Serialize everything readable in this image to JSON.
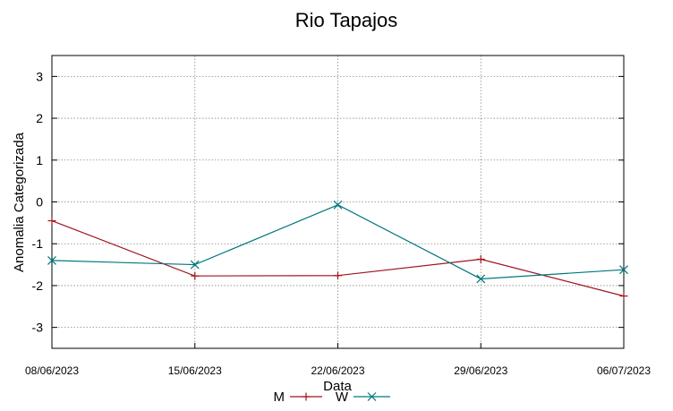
{
  "chart_data": {
    "type": "line",
    "title": "Rio Tapajos",
    "xlabel": "Data",
    "ylabel": "Anomalia Categorizada",
    "x": [
      "08/06/2023",
      "15/06/2023",
      "22/06/2023",
      "29/06/2023",
      "06/07/2023"
    ],
    "ylim": [
      -3.5,
      3.5
    ],
    "yticks": [
      -3,
      -2,
      -1,
      0,
      1,
      2,
      3
    ],
    "grid": true,
    "legend": "bottom-center",
    "series": [
      {
        "name": "M",
        "color": "#a0141e",
        "marker": "plus",
        "values": [
          -0.45,
          -1.77,
          -1.76,
          -1.37,
          -2.25
        ]
      },
      {
        "name": "W",
        "color": "#00777d",
        "marker": "cross",
        "values": [
          -1.4,
          -1.5,
          -0.07,
          -1.84,
          -1.62
        ]
      }
    ]
  }
}
